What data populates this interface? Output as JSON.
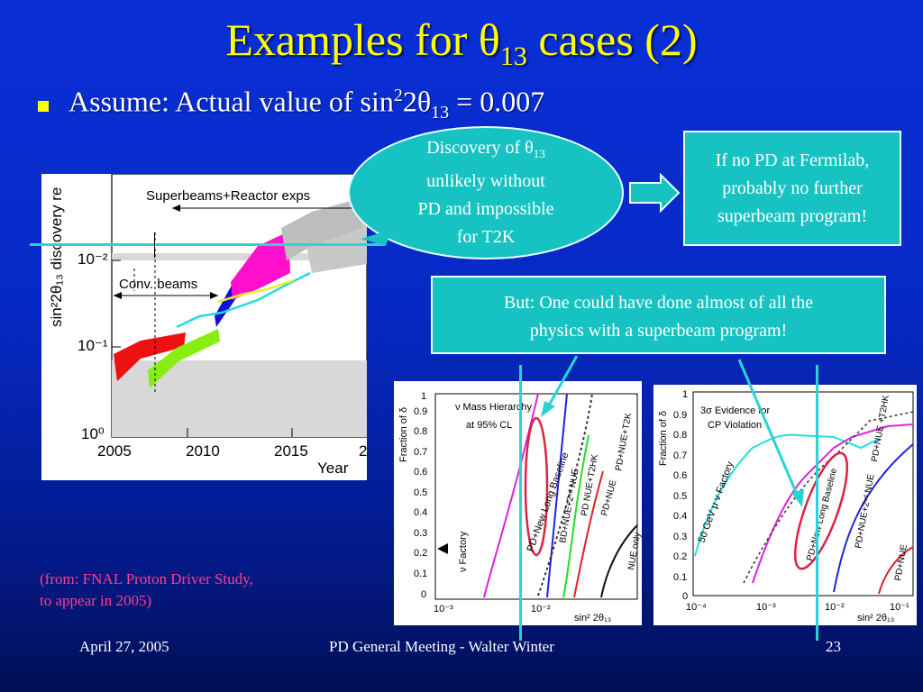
{
  "title": {
    "pre": "Examples for ",
    "theta": "θ",
    "sub": "13",
    "post": " cases (2)"
  },
  "bullet": {
    "pre": "Assume: Actual value of sin",
    "sup": "2",
    "mid": "2θ",
    "sub": "13",
    "post": " = 0.007"
  },
  "callout": {
    "line1": "Discovery of θ",
    "line1_sub": "13",
    "line2": "unlikely without",
    "line3": "PD and impossible",
    "line4": "for T2K"
  },
  "right_box": {
    "line1": "If no PD at Fermilab,",
    "line2": "probably no further",
    "line3": "superbeam program!"
  },
  "but_box": {
    "line1": "But: One could have done almost of all the",
    "line2": "physics with a superbeam program!"
  },
  "citation": {
    "line1": "(from: FNAL Proton Driver Study,",
    "line2": "to appear in 2005)"
  },
  "footer": {
    "date": "April 27, 2005",
    "center": "PD General Meeting - Walter Winter",
    "page": "23"
  },
  "left_plot": {
    "ylabel": "sin²2θ₁₃ discovery re",
    "yticks": [
      "10⁻²",
      "10⁻¹",
      "10⁰"
    ],
    "xticks": [
      "2005",
      "2010",
      "2015",
      "2"
    ],
    "xlabel": "Year",
    "label_super": "Superbeams+Reactor exps",
    "label_conv": "Conv. beams"
  },
  "mid_plot": {
    "ylabel": "Fraction of δ",
    "yticks": [
      "1",
      "0.9",
      "0.8",
      "0.7",
      "0.6",
      "0.5",
      "0.4",
      "0.3",
      "0.2",
      "0.1",
      "0"
    ],
    "xticks": [
      "10⁻³",
      "10⁻²"
    ],
    "xlabel": "sin² 2θ₁₃",
    "legend1": "ν Mass Hierarchy",
    "legend2": "at 95% CL",
    "label_nufact": "ν Factory",
    "label_longbase": "PD+New Long Baseline",
    "label_bd": "BD+NUE+2ⁿᵈ NUE",
    "label_pdt2k": "PD NUE+T2HK",
    "label_pdnuet2k": "PD+NUE+T2K",
    "label_pdnue": "PD+NUE",
    "label_nueonly": "NUE only"
  },
  "right_plot": {
    "ylabel": "Fraction of δ",
    "yticks": [
      "1",
      "0.9",
      "0.8",
      "0.7",
      "0.6",
      "0.5",
      "0.4",
      "0.3",
      "0.2",
      "0.1",
      "0"
    ],
    "xticks": [
      "10⁻⁴",
      "10⁻³",
      "10⁻²",
      "10⁻¹"
    ],
    "xlabel": "sin² 2θ₁₃",
    "legend1": "3σ Evidence for",
    "legend2": "CP Violation",
    "label_50gev": "50 GeV μ ν Factory",
    "label_longbase": "PD+New Long Baseline",
    "label_pdnue2": "PD+NUE+2ⁿᵈ NUE",
    "label_pdnuet2hk": "PD+NUE +T2HK",
    "label_pdnue": "PD+NUE"
  },
  "colors": {
    "title": "#ffff00",
    "box": "#17c2c2",
    "citation": "#ff3e8c",
    "background": "#0629c4"
  }
}
